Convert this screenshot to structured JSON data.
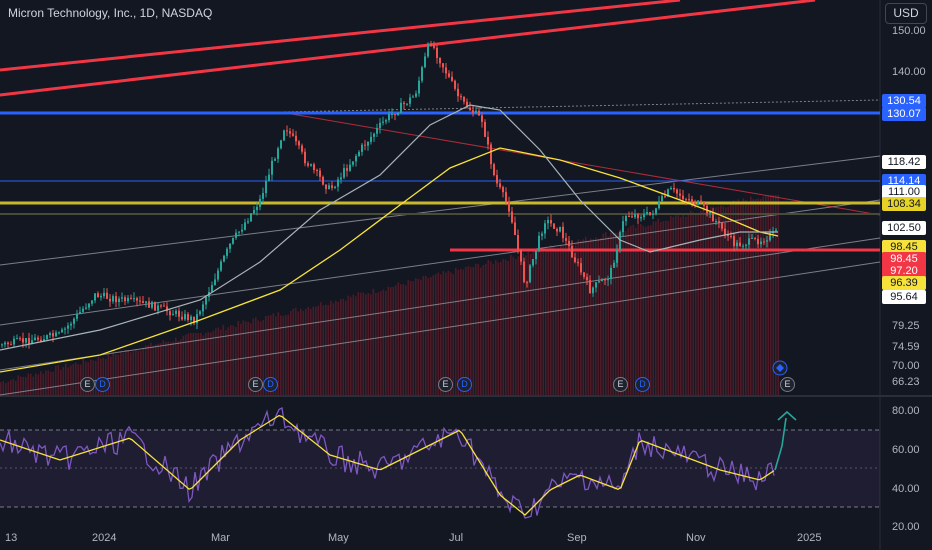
{
  "header": {
    "title": "Micron Technology, Inc., 1D, NASDAQ",
    "currency_button": "USD"
  },
  "price_axis": {
    "plain_ticks": [
      "150.00",
      "140.00",
      "79.25",
      "74.59",
      "70.00",
      "66.23"
    ],
    "badges": [
      {
        "text": "130.54",
        "bg": "#2962ff",
        "fg": "#ffffff"
      },
      {
        "text": "130.07",
        "bg": "#2962ff",
        "fg": "#ffffff"
      },
      {
        "text": "118.42",
        "bg": "#ffffff",
        "fg": "#131722"
      },
      {
        "text": "114.14",
        "bg": "#2962ff",
        "fg": "#ffffff"
      },
      {
        "text": "111.00",
        "bg": "#ffffff",
        "fg": "#131722"
      },
      {
        "text": "108.34",
        "bg": "#e6d325",
        "fg": "#131722"
      },
      {
        "text": "102.50",
        "bg": "#ffffff",
        "fg": "#131722"
      },
      {
        "text": "98.45",
        "bg": "#f7e13b",
        "fg": "#131722"
      },
      {
        "text": "98.45",
        "bg": "#f23645",
        "fg": "#ffffff"
      },
      {
        "text": "97.20",
        "bg": "#f23645",
        "fg": "#ffffff"
      },
      {
        "text": "96.39",
        "bg": "#f7e13b",
        "fg": "#131722"
      },
      {
        "text": "95.64",
        "bg": "#ffffff",
        "fg": "#131722"
      }
    ]
  },
  "rsi_axis": {
    "ticks": [
      "80.00",
      "60.00",
      "40.00",
      "20.00"
    ]
  },
  "time_axis": {
    "labels": [
      "13",
      "2024",
      "Mar",
      "May",
      "Jul",
      "Sep",
      "Nov",
      "2025"
    ]
  },
  "earnings_markers": [
    {
      "label": "E",
      "kind": "earnings"
    },
    {
      "label": "D",
      "kind": "dividend"
    },
    {
      "label": "E",
      "kind": "earnings"
    },
    {
      "label": "D",
      "kind": "dividend"
    },
    {
      "label": "E",
      "kind": "earnings"
    },
    {
      "label": "D",
      "kind": "dividend"
    },
    {
      "label": "E",
      "kind": "earnings"
    },
    {
      "label": "D",
      "kind": "dividend"
    },
    {
      "label": "E",
      "kind": "earnings"
    }
  ],
  "colors": {
    "background": "#131722",
    "up": "#26a69a",
    "down": "#ef5350",
    "ma_yellow": "#f7e13b",
    "ma_gray": "#a7b4b8",
    "rsi": "#7e57c2",
    "channel_red": "#f23645",
    "level_blue": "#2962ff",
    "level_yellow": "#c9b82a"
  }
}
